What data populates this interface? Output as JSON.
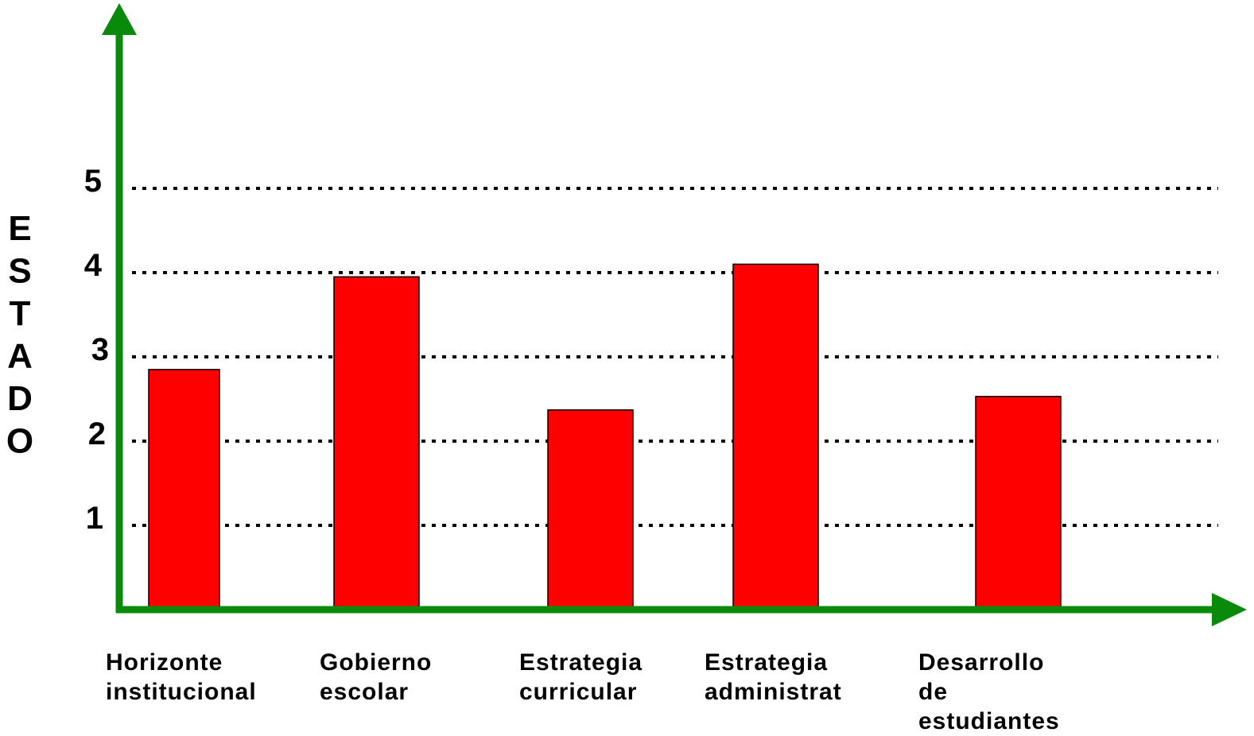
{
  "chart_data": {
    "type": "bar",
    "title": "",
    "xlabel": "",
    "ylabel": "ESTADO",
    "ylim": [
      0,
      5
    ],
    "yticks": [
      1,
      2,
      3,
      4,
      5
    ],
    "grid": true,
    "legend": "none",
    "categories": [
      [
        "Horizonte",
        "institucional"
      ],
      [
        "Gobierno",
        "escolar"
      ],
      [
        "Estrategia",
        "curricular"
      ],
      [
        "Estrategia",
        "administrat"
      ],
      [
        "Desarrollo",
        "de",
        "estudiantes"
      ]
    ],
    "values": [
      2.85,
      3.95,
      2.37,
      4.1,
      2.53
    ],
    "colors": {
      "bar": "#ff0000",
      "axis": "#0a8a0a",
      "grid": "#000000"
    }
  }
}
